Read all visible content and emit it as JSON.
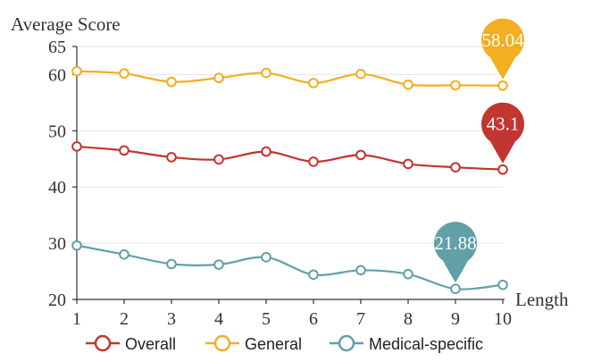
{
  "chart_data": {
    "type": "line",
    "ylabel": "Average Score",
    "xlabel": "Length",
    "x": [
      1,
      2,
      3,
      4,
      5,
      6,
      7,
      8,
      9,
      10
    ],
    "ylim": [
      20,
      65
    ],
    "yticks": [
      20,
      30,
      40,
      50,
      60,
      65
    ],
    "grid": true,
    "legend_position": "bottom",
    "series": [
      {
        "name": "Overall",
        "color": "#c23531",
        "values": [
          47.2,
          46.5,
          45.3,
          44.9,
          46.3,
          44.5,
          45.7,
          44.1,
          43.5,
          43.1
        ],
        "marker_label": "43.1",
        "marker_index": 9
      },
      {
        "name": "General",
        "color": "#f3ae21",
        "values": [
          60.6,
          60.2,
          58.7,
          59.4,
          60.3,
          58.5,
          60.1,
          58.2,
          58.1,
          58.04
        ],
        "marker_label": "58.04",
        "marker_index": 9
      },
      {
        "name": "Medical-specific",
        "color": "#61a0a8",
        "values": [
          29.6,
          28.0,
          26.3,
          26.2,
          27.5,
          24.4,
          25.2,
          24.5,
          21.88,
          22.6
        ],
        "marker_label": "21.88",
        "marker_index": 8
      }
    ]
  }
}
